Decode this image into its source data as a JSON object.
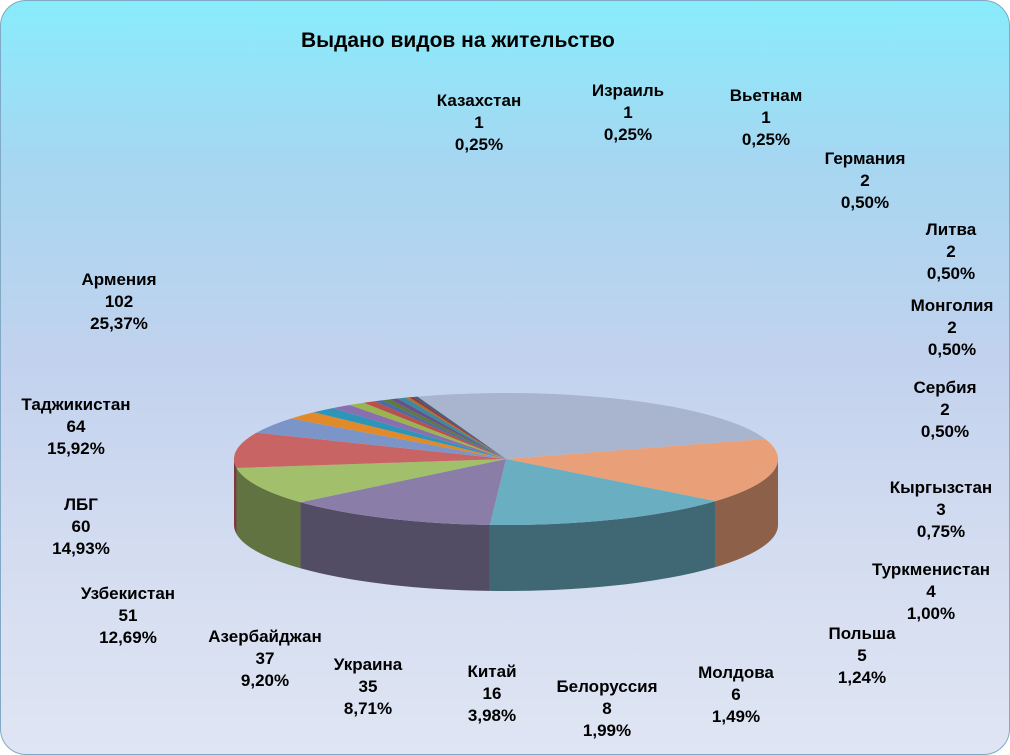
{
  "chart_data": {
    "type": "pie",
    "title": "Выдано видов на жительство",
    "slices": [
      {
        "name": "Армения",
        "value": 102,
        "pct": "25,37%",
        "color": "#a9b5cf"
      },
      {
        "name": "Таджикистан",
        "value": 64,
        "pct": "15,92%",
        "color": "#e9a079"
      },
      {
        "name": "ЛБГ",
        "value": 60,
        "pct": "14,93%",
        "color": "#6aaec2"
      },
      {
        "name": "Узбекистан",
        "value": 51,
        "pct": "12,69%",
        "color": "#8a7ea8"
      },
      {
        "name": "Азербайджан",
        "value": 37,
        "pct": "9,20%",
        "color": "#a2bf6b"
      },
      {
        "name": "Украина",
        "value": 35,
        "pct": "8,71%",
        "color": "#c96464"
      },
      {
        "name": "Китай",
        "value": 16,
        "pct": "3,98%",
        "color": "#7b95c8"
      },
      {
        "name": "Белоруссия",
        "value": 8,
        "pct": "1,99%",
        "color": "#e28a2a"
      },
      {
        "name": "Молдова",
        "value": 6,
        "pct": "1,49%",
        "color": "#2d95b8"
      },
      {
        "name": "Польша",
        "value": 5,
        "pct": "1,24%",
        "color": "#8a6fb0"
      },
      {
        "name": "Туркменистан",
        "value": 4,
        "pct": "1,00%",
        "color": "#9ab54f"
      },
      {
        "name": "Кыргызстан",
        "value": 3,
        "pct": "0,75%",
        "color": "#b8504b"
      },
      {
        "name": "Сербия",
        "value": 2,
        "pct": "0,50%",
        "color": "#4a6aa8"
      },
      {
        "name": "Монголия",
        "value": 2,
        "pct": "0,50%",
        "color": "#5e7a3a"
      },
      {
        "name": "Литва",
        "value": 2,
        "pct": "0,50%",
        "color": "#6a4f8a"
      },
      {
        "name": "Германия",
        "value": 2,
        "pct": "0,50%",
        "color": "#3a8aa0"
      },
      {
        "name": "Вьетнам",
        "value": 1,
        "pct": "0,25%",
        "color": "#b86a2a"
      },
      {
        "name": "Израиль",
        "value": 1,
        "pct": "0,25%",
        "color": "#8a3a3a"
      },
      {
        "name": "Казахстан",
        "value": 1,
        "pct": "0,25%",
        "color": "#4a5a7a"
      }
    ]
  }
}
